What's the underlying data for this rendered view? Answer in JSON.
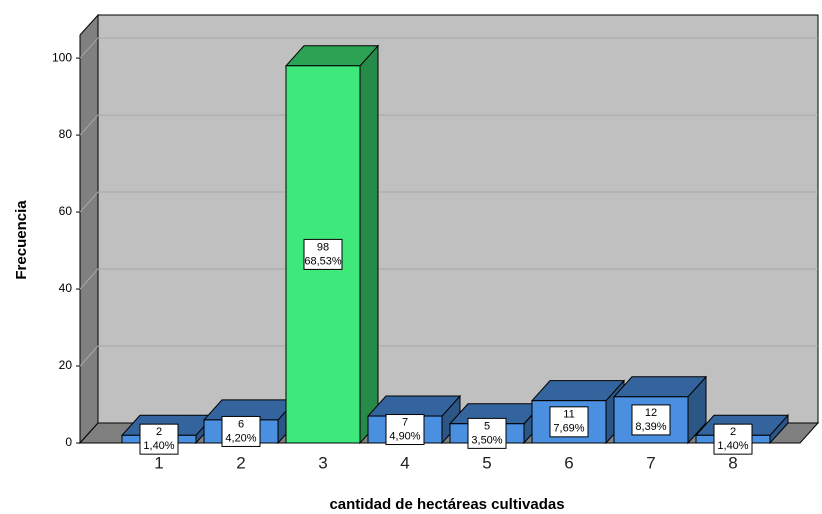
{
  "chart_data": {
    "type": "bar3d",
    "x_label": "cantidad de hectáreas cultivadas",
    "y_label": "Frecuencia",
    "categories": [
      "1",
      "2",
      "3",
      "4",
      "5",
      "6",
      "7",
      "8"
    ],
    "values": [
      2,
      6,
      98,
      7,
      5,
      11,
      12,
      2
    ],
    "percent_labels": [
      "1,40%",
      "4,20%",
      "68,53%",
      "4,90%",
      "3,50%",
      "7,69%",
      "8,39%",
      "1,40%"
    ],
    "colors": [
      "#4a8fe0",
      "#4a8fe0",
      "#3fe87a",
      "#4a8fe0",
      "#4a8fe0",
      "#4a8fe0",
      "#4a8fe0",
      "#4a8fe0"
    ],
    "ylim": [
      0,
      106
    ],
    "yticks": [
      0,
      20,
      40,
      60,
      80,
      100
    ],
    "grid": true
  }
}
